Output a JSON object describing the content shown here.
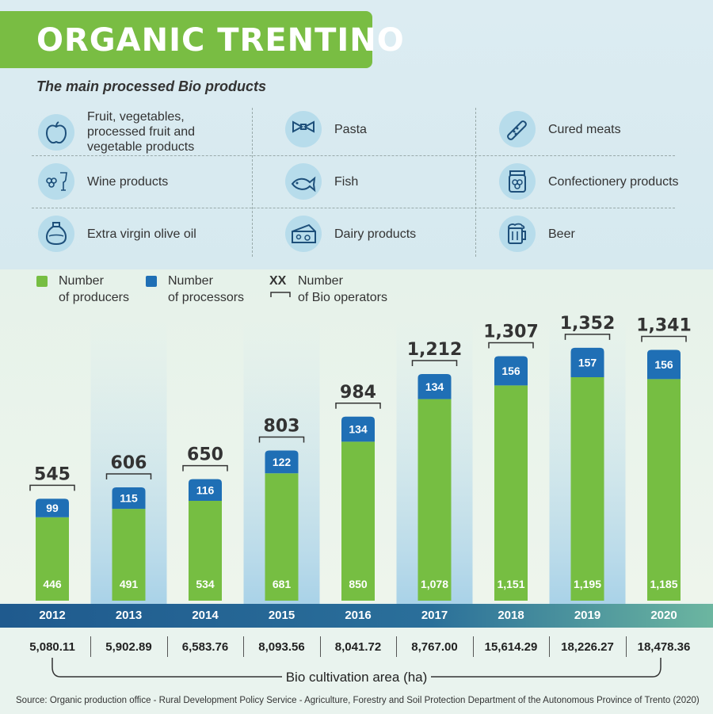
{
  "title": "ORGANIC TRENTINO",
  "subtitle": "The main processed Bio products",
  "products": [
    {
      "icon": "apple-icon",
      "label_lines": [
        "Fruit, vegetables,",
        "processed fruit and",
        "vegetable products"
      ]
    },
    {
      "icon": "pasta-icon",
      "label_lines": [
        "Pasta"
      ]
    },
    {
      "icon": "cured-meat-icon",
      "label_lines": [
        "Cured meats"
      ]
    },
    {
      "icon": "wine-grapes-icon",
      "label_lines": [
        "Wine products"
      ]
    },
    {
      "icon": "fish-icon",
      "label_lines": [
        "Fish"
      ]
    },
    {
      "icon": "jam-jar-icon",
      "label_lines": [
        "Confectionery products"
      ]
    },
    {
      "icon": "olive-oil-bottle-icon",
      "label_lines": [
        "Extra virgin olive oil"
      ]
    },
    {
      "icon": "cheese-icon",
      "label_lines": [
        "Dairy products"
      ]
    },
    {
      "icon": "beer-mug-icon",
      "label_lines": [
        "Beer"
      ]
    }
  ],
  "legend": {
    "producers": {
      "label_lines": [
        "Number",
        "of producers"
      ],
      "color": "#76be42"
    },
    "processors": {
      "label_lines": [
        "Number",
        "of processors"
      ],
      "color": "#1f6fb5"
    },
    "operators": {
      "marker": "XX",
      "label_lines": [
        "Number",
        "of Bio operators"
      ]
    }
  },
  "chart_data": {
    "type": "bar",
    "stacked": true,
    "categories": [
      "2012",
      "2013",
      "2014",
      "2015",
      "2016",
      "2017",
      "2018",
      "2019",
      "2020"
    ],
    "series": [
      {
        "name": "Number of producers",
        "values": [
          446,
          491,
          534,
          681,
          850,
          1078,
          1151,
          1195,
          1185
        ],
        "labels": [
          "446",
          "491",
          "534",
          "681",
          "850",
          "1,078",
          "1,151",
          "1,195",
          "1,185"
        ],
        "color": "#76be42"
      },
      {
        "name": "Number of processors",
        "values": [
          99,
          115,
          116,
          122,
          134,
          134,
          156,
          157,
          156
        ],
        "labels": [
          "99",
          "115",
          "116",
          "122",
          "134",
          "134",
          "156",
          "157",
          "156"
        ],
        "color": "#1f6fb5"
      }
    ],
    "totals": {
      "name": "Number of Bio operators",
      "values": [
        545,
        606,
        650,
        803,
        984,
        1212,
        1307,
        1352,
        1341
      ],
      "labels": [
        "545",
        "606",
        "650",
        "803",
        "984",
        "1,212",
        "1,307",
        "1,352",
        "1,341"
      ]
    },
    "ylim": [
      0,
      1352
    ]
  },
  "cultivation_area": {
    "label": "Bio cultivation area (ha)",
    "values": [
      "5,080.11",
      "5,902.89",
      "6,583.76",
      "8,093.56",
      "8,041.72",
      "8,767.00",
      "15,614.29",
      "18,226.27",
      "18,478.36"
    ]
  },
  "source": "Source: Organic production office - Rural Development Policy Service - Agriculture, Forestry and Soil Protection Department of the Autonomous Province of Trento (2020)"
}
